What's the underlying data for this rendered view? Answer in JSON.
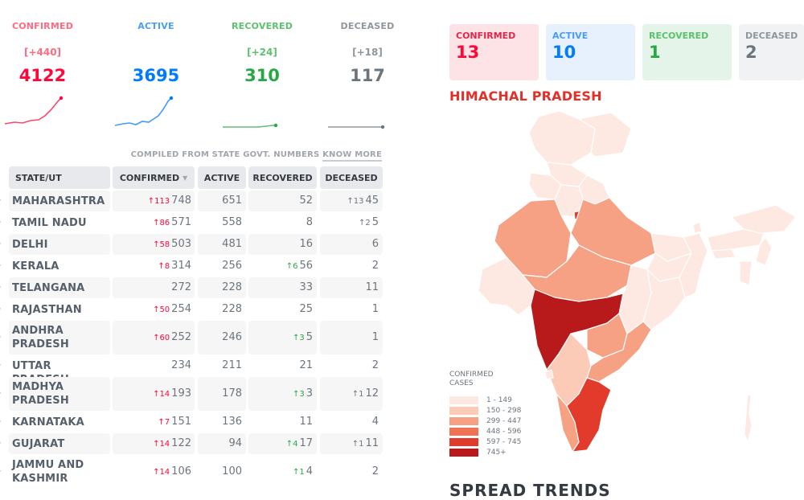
{
  "stats": [
    {
      "label": "CONFIRMED",
      "delta": "[+440]",
      "value": "4122",
      "color": "#ff073a",
      "label_color": "#ff6b81",
      "delta_color": "#ff6b81"
    },
    {
      "label": "ACTIVE",
      "delta": "",
      "value": "3695",
      "color": "#007bff",
      "label_color": "#4c9cf5",
      "delta_color": "#4c9cf5"
    },
    {
      "label": "RECOVERED",
      "delta": "[+24]",
      "value": "310",
      "color": "#28a745",
      "label_color": "#5cc16e",
      "delta_color": "#5cc16e"
    },
    {
      "label": "DECEASED",
      "delta": "[+18]",
      "value": "117",
      "color": "#6c757d",
      "label_color": "#8f969c",
      "delta_color": "#8f969c"
    }
  ],
  "compiled_note": {
    "prefix": "COMPILED FROM STATE GOVT. NUMBERS",
    "link": "KNOW MORE"
  },
  "table": {
    "headers": {
      "state": "STATE/UT",
      "confirmed": "CONFIRMED",
      "sort_icon": "▾",
      "active": "ACTIVE",
      "recovered": "RECOVERED",
      "deceased": "DECEASED"
    },
    "rows": [
      {
        "state": "MAHARASHTRA",
        "confirmed_delta": "↑113",
        "confirmed": "748",
        "active": "651",
        "recovered_delta": "",
        "recovered": "52",
        "deceased_delta": "↑13",
        "deceased": "45"
      },
      {
        "state": "TAMIL NADU",
        "confirmed_delta": "↑86",
        "confirmed": "571",
        "active": "558",
        "recovered_delta": "",
        "recovered": "8",
        "deceased_delta": "↑2",
        "deceased": "5"
      },
      {
        "state": "DELHI",
        "confirmed_delta": "↑58",
        "confirmed": "503",
        "active": "481",
        "recovered_delta": "",
        "recovered": "16",
        "deceased_delta": "",
        "deceased": "6"
      },
      {
        "state": "KERALA",
        "confirmed_delta": "↑8",
        "confirmed": "314",
        "active": "256",
        "recovered_delta": "↑6",
        "recovered": "56",
        "deceased_delta": "",
        "deceased": "2"
      },
      {
        "state": "TELANGANA",
        "confirmed_delta": "",
        "confirmed": "272",
        "active": "228",
        "recovered_delta": "",
        "recovered": "33",
        "deceased_delta": "",
        "deceased": "11"
      },
      {
        "state": "RAJASTHAN",
        "confirmed_delta": "↑50",
        "confirmed": "254",
        "active": "228",
        "recovered_delta": "",
        "recovered": "25",
        "deceased_delta": "",
        "deceased": "1"
      },
      {
        "state": "ANDHRA PRADESH",
        "confirmed_delta": "↑60",
        "confirmed": "252",
        "active": "246",
        "recovered_delta": "↑3",
        "recovered": "5",
        "deceased_delta": "",
        "deceased": "1"
      },
      {
        "state": "UTTAR PRADESH",
        "confirmed_delta": "",
        "confirmed": "234",
        "active": "211",
        "recovered_delta": "",
        "recovered": "21",
        "deceased_delta": "",
        "deceased": "2"
      },
      {
        "state": "MADHYA PRADESH",
        "confirmed_delta": "↑14",
        "confirmed": "193",
        "active": "178",
        "recovered_delta": "↑3",
        "recovered": "3",
        "deceased_delta": "↑1",
        "deceased": "12"
      },
      {
        "state": "KARNATAKA",
        "confirmed_delta": "↑7",
        "confirmed": "151",
        "active": "136",
        "recovered_delta": "",
        "recovered": "11",
        "deceased_delta": "",
        "deceased": "4"
      },
      {
        "state": "GUJARAT",
        "confirmed_delta": "↑14",
        "confirmed": "122",
        "active": "94",
        "recovered_delta": "↑4",
        "recovered": "17",
        "deceased_delta": "↑1",
        "deceased": "11"
      },
      {
        "state": "JAMMU AND KASHMIR",
        "confirmed_delta": "↑14",
        "confirmed": "106",
        "active": "100",
        "recovered_delta": "↑1",
        "recovered": "4",
        "deceased_delta": "",
        "deceased": "2"
      }
    ]
  },
  "region_cards": [
    {
      "label": "CONFIRMED",
      "value": "13",
      "bg": "#fde2e6",
      "label_color": "#e0284a",
      "value_color": "#ff073a"
    },
    {
      "label": "ACTIVE",
      "value": "10",
      "bg": "#e6f1fd",
      "label_color": "#4c9cf5",
      "value_color": "#007bff"
    },
    {
      "label": "RECOVERED",
      "value": "1",
      "bg": "#e4f4e8",
      "label_color": "#5cc16e",
      "value_color": "#28a745"
    },
    {
      "label": "DECEASED",
      "value": "2",
      "bg": "#f1f2f3",
      "label_color": "#8f969c",
      "value_color": "#6c757d"
    }
  ],
  "region_name": "HIMACHAL PRADESH",
  "map_legend": {
    "title_line1": "CONFIRMED",
    "title_line2": "CASES",
    "bins": [
      {
        "label": "1 - 149",
        "color": "#fde8e2"
      },
      {
        "label": "150 - 298",
        "color": "#fbcbb8"
      },
      {
        "label": "299 - 447",
        "color": "#f6a184"
      },
      {
        "label": "448 - 596",
        "color": "#ef7257"
      },
      {
        "label": "597 - 745",
        "color": "#e23b2c"
      },
      {
        "label": "745+",
        "color": "#b81a1c"
      }
    ]
  },
  "section_heading": "SPREAD TRENDS"
}
